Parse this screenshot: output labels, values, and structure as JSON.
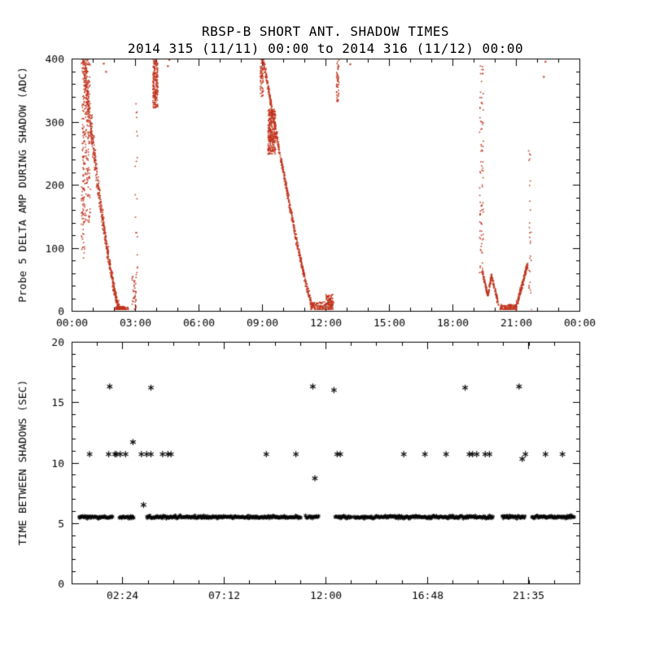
{
  "page": {
    "background": "#ffffff"
  },
  "chart_data": [
    {
      "type": "scatter",
      "title": "RBSP-B SHORT ANT. SHADOW TIMES",
      "subtitle": "2014 315 (11/11) 00:00 to 2014 316 (11/12) 00:00",
      "ylabel": "Probe 5 DELTA AMP DURING SHADOW (ADC)",
      "xlim": [
        0,
        24
      ],
      "ylim": [
        0,
        400
      ],
      "xticks": [
        {
          "v": 0,
          "label": "00:00"
        },
        {
          "v": 3,
          "label": "03:00"
        },
        {
          "v": 6,
          "label": "06:00"
        },
        {
          "v": 9,
          "label": "09:00"
        },
        {
          "v": 12,
          "label": "12:00"
        },
        {
          "v": 15,
          "label": "15:00"
        },
        {
          "v": 18,
          "label": "18:00"
        },
        {
          "v": 21,
          "label": "21:00"
        },
        {
          "v": 24,
          "label": "00:00"
        }
      ],
      "yticks": [
        {
          "v": 0,
          "label": "0"
        },
        {
          "v": 100,
          "label": "100"
        },
        {
          "v": 200,
          "label": "200"
        },
        {
          "v": 300,
          "label": "300"
        },
        {
          "v": 400,
          "label": "400"
        }
      ],
      "minor_x": 1,
      "minor_y": 20,
      "grid": false,
      "marker": "dot",
      "color": "#c0331c",
      "clusters": [
        {
          "kind": "box",
          "x": [
            0.5,
            0.88
          ],
          "y": [
            140,
            400
          ],
          "n": 260
        },
        {
          "kind": "box",
          "x": [
            0.45,
            0.62
          ],
          "y": [
            80,
            200
          ],
          "n": 40
        },
        {
          "kind": "curve",
          "x0": 0.55,
          "x1": 2.3,
          "y0": 400,
          "y1": 0,
          "pow": 1.35,
          "jx0": 0.16,
          "jx1": 0.03,
          "jy": 12,
          "n": 650
        },
        {
          "kind": "box",
          "x": [
            2.05,
            2.68
          ],
          "y": [
            0,
            7
          ],
          "n": 110
        },
        {
          "kind": "box",
          "x": [
            2.86,
            3.06
          ],
          "y": [
            0,
            55
          ],
          "n": 35
        },
        {
          "kind": "box",
          "x": [
            3.0,
            3.12
          ],
          "y": [
            55,
            335
          ],
          "n": 20
        },
        {
          "kind": "box",
          "x": [
            3.84,
            4.08
          ],
          "y": [
            322,
            400
          ],
          "n": 220
        },
        {
          "kind": "points",
          "pts": [
            [
              1.52,
              392
            ],
            [
              1.63,
              379
            ],
            [
              4.55,
              388
            ],
            [
              4.62,
              398
            ],
            [
              13.17,
              391
            ],
            [
              22.32,
              371
            ],
            [
              22.4,
              395
            ]
          ]
        },
        {
          "kind": "box",
          "x": [
            8.92,
            9.06
          ],
          "y": [
            340,
            400
          ],
          "n": 70
        },
        {
          "kind": "curve",
          "x0": 9.05,
          "x1": 11.38,
          "y0": 400,
          "y1": 6,
          "pow": 1.15,
          "jx0": 0.05,
          "jx1": 0.05,
          "jy": 10,
          "n": 600
        },
        {
          "kind": "box",
          "x": [
            9.28,
            9.64
          ],
          "y": [
            248,
            320
          ],
          "n": 320
        },
        {
          "kind": "box",
          "x": [
            11.3,
            12.35
          ],
          "y": [
            0,
            14
          ],
          "n": 170
        },
        {
          "kind": "box",
          "x": [
            12.02,
            12.38
          ],
          "y": [
            8,
            26
          ],
          "n": 70
        },
        {
          "kind": "box",
          "x": [
            12.52,
            12.64
          ],
          "y": [
            332,
            400
          ],
          "n": 50
        },
        {
          "kind": "box",
          "x": [
            19.28,
            19.46
          ],
          "y": [
            60,
            400
          ],
          "n": 85
        },
        {
          "kind": "curve",
          "x0": 19.42,
          "x1": 19.68,
          "y0": 62,
          "y1": 24,
          "pow": 1,
          "jx0": 0.03,
          "jx1": 0.03,
          "jy": 6,
          "n": 70
        },
        {
          "kind": "curve",
          "x0": 19.68,
          "x1": 19.84,
          "y0": 24,
          "y1": 56,
          "pow": 1,
          "jx0": 0.03,
          "jx1": 0.03,
          "jy": 6,
          "n": 50
        },
        {
          "kind": "curve",
          "x0": 19.84,
          "x1": 20.18,
          "y0": 56,
          "y1": 10,
          "pow": 1,
          "jx0": 0.03,
          "jx1": 0.03,
          "jy": 6,
          "n": 80
        },
        {
          "kind": "box",
          "x": [
            20.25,
            21.05
          ],
          "y": [
            0,
            10
          ],
          "n": 140
        },
        {
          "kind": "curve",
          "x0": 21.0,
          "x1": 21.56,
          "y0": 4,
          "y1": 74,
          "pow": 1,
          "jx0": 0.04,
          "jx1": 0.04,
          "jy": 8,
          "n": 170
        },
        {
          "kind": "box",
          "x": [
            21.6,
            21.74
          ],
          "y": [
            0,
            255
          ],
          "n": 28
        }
      ]
    },
    {
      "type": "scatter",
      "title": "",
      "ylabel": "TIME BETWEEN SHADOWS (SEC)",
      "xlim": [
        0,
        24
      ],
      "ylim": [
        0,
        20
      ],
      "xticks": [
        {
          "v": 2.4,
          "label": "02:24"
        },
        {
          "v": 7.2,
          "label": "07:12"
        },
        {
          "v": 12,
          "label": "12:00"
        },
        {
          "v": 16.8,
          "label": "16:48"
        },
        {
          "v": 21.583,
          "label": "21:35"
        }
      ],
      "yticks": [
        {
          "v": 0,
          "label": "0"
        },
        {
          "v": 5,
          "label": "5"
        },
        {
          "v": 10,
          "label": "10"
        },
        {
          "v": 15,
          "label": "15"
        },
        {
          "v": 20,
          "label": "20"
        }
      ],
      "minor_x": 1.2,
      "minor_y": 1,
      "grid": false,
      "marker": "asterisk",
      "color": "#000000",
      "band": {
        "y": 5.5,
        "jitter": 0.18,
        "step": 0.03,
        "segments": [
          [
            0.35,
            1.95
          ],
          [
            2.25,
            2.95
          ],
          [
            3.55,
            10.85
          ],
          [
            11.05,
            11.68
          ],
          [
            12.45,
            13.25
          ],
          [
            13.35,
            19.95
          ],
          [
            20.35,
            21.45
          ],
          [
            21.75,
            23.78
          ]
        ]
      },
      "points": [
        [
          0.85,
          10.7
        ],
        [
          1.75,
          10.7
        ],
        [
          1.8,
          16.3
        ],
        [
          2.05,
          10.7
        ],
        [
          2.12,
          10.7
        ],
        [
          2.3,
          10.7
        ],
        [
          2.55,
          10.7
        ],
        [
          2.9,
          11.7
        ],
        [
          3.3,
          10.7
        ],
        [
          3.4,
          6.5
        ],
        [
          3.55,
          10.7
        ],
        [
          3.75,
          10.7
        ],
        [
          3.75,
          16.2
        ],
        [
          4.3,
          10.7
        ],
        [
          4.55,
          10.7
        ],
        [
          4.7,
          10.7
        ],
        [
          9.2,
          10.7
        ],
        [
          10.6,
          10.7
        ],
        [
          11.4,
          16.3
        ],
        [
          11.5,
          8.7
        ],
        [
          12.4,
          16.0
        ],
        [
          12.55,
          10.7
        ],
        [
          12.7,
          10.7
        ],
        [
          15.7,
          10.7
        ],
        [
          16.7,
          10.7
        ],
        [
          17.7,
          10.7
        ],
        [
          18.6,
          16.2
        ],
        [
          18.8,
          10.7
        ],
        [
          18.95,
          10.7
        ],
        [
          19.15,
          10.7
        ],
        [
          19.55,
          10.7
        ],
        [
          19.75,
          10.7
        ],
        [
          21.15,
          16.3
        ],
        [
          21.3,
          10.3
        ],
        [
          21.45,
          10.7
        ],
        [
          22.4,
          10.7
        ],
        [
          23.2,
          10.7
        ]
      ]
    }
  ]
}
